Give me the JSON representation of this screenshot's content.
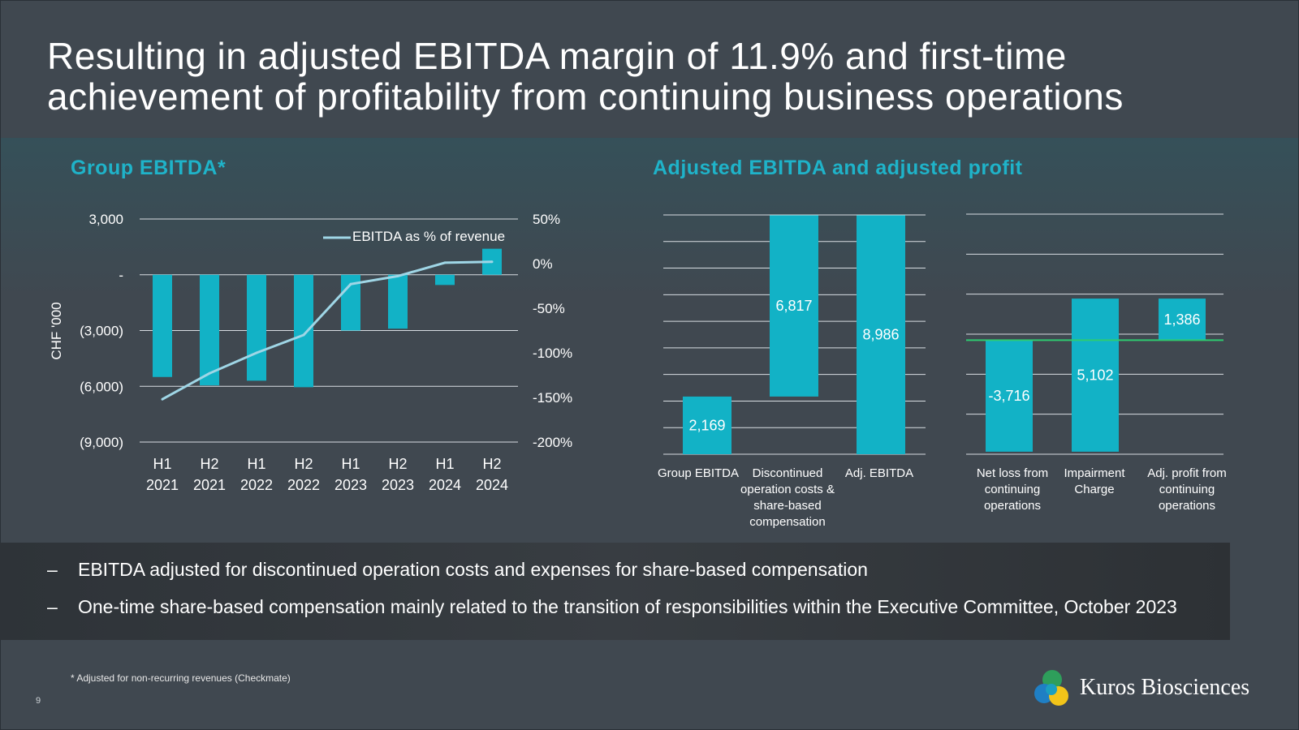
{
  "slide": {
    "title_line1": "Resulting in adjusted EBITDA margin of 11.9% and first-time",
    "title_line2": "achievement of profitability from continuing business operations",
    "page_number": "9",
    "footnote": "* Adjusted for non-recurring revenues (Checkmate)",
    "bullets": [
      "EBITDA adjusted for discontinued operation costs and expenses for share-based compensation",
      "One-time share-based compensation mainly related to the transition of responsibilities within the Executive Committee, October 2023"
    ],
    "bullet_marker": "–",
    "logo_text": "Kuros Biosciences",
    "colors": {
      "accent": "#1fb3c9",
      "bar": "#12b2c6",
      "line": "#9fd6e6",
      "zero_line": "#2ecc71",
      "background": "#404850"
    }
  },
  "chart_data": [
    {
      "type": "bar",
      "title": "Group EBITDA*",
      "categories": [
        [
          "H1",
          "2021"
        ],
        [
          "H2",
          "2021"
        ],
        [
          "H1",
          "2022"
        ],
        [
          "H2",
          "2022"
        ],
        [
          "H1",
          "2023"
        ],
        [
          "H2",
          "2023"
        ],
        [
          "H1",
          "2024"
        ],
        [
          "H2",
          "2024"
        ]
      ],
      "series": [
        {
          "name": "Group EBITDA",
          "type": "bar",
          "axis": "left",
          "values": [
            -5500,
            -5950,
            -5700,
            -6050,
            -3000,
            -2900,
            -550,
            1400
          ]
        },
        {
          "name": "EBITDA as % of revenue",
          "type": "line",
          "axis": "right",
          "values": [
            -152,
            -123,
            -100,
            -80,
            -23,
            -14,
            1,
            2
          ]
        }
      ],
      "ylabel": "CHF '000",
      "ylim": [
        -9000,
        3000
      ],
      "y_ticks": [
        3000,
        0,
        -3000,
        -6000,
        -9000
      ],
      "y_tick_labels": [
        "3,000",
        "-",
        "(3,000)",
        "(6,000)",
        "(9,000)"
      ],
      "y2lim": [
        -200,
        50
      ],
      "y2_ticks": [
        50,
        0,
        -50,
        -100,
        -150,
        -200
      ],
      "y2_tick_labels": [
        "50%",
        "0%",
        "-50%",
        "-100%",
        "-150%",
        "-200%"
      ],
      "legend": "EBITDA as % of revenue",
      "legend_position": "top-right",
      "grid": true
    },
    {
      "type": "bar",
      "title": "Adjusted EBITDA and adjusted profit",
      "subtype": "waterfall",
      "categories": [
        "Group EBITDA",
        "Discontinued operation costs & share-based compensation",
        "Adj. EBITDA"
      ],
      "category_label_lines": [
        [
          "Group EBITDA"
        ],
        [
          "Discontinued",
          "operation costs &",
          "share-based",
          "compensation"
        ],
        [
          "Adj. EBITDA"
        ]
      ],
      "values": [
        2169,
        6817,
        8986
      ],
      "bar_starts": [
        0,
        2169,
        0
      ],
      "data_labels": [
        "2,169",
        "6,817",
        "8,986"
      ],
      "ylim": [
        0,
        9000
      ],
      "grid": true
    },
    {
      "type": "bar",
      "subtype": "waterfall",
      "categories": [
        "Net loss from continuing operations",
        "Impairment Charge",
        "Adj. profit from continuing operations"
      ],
      "category_label_lines": [
        [
          "Net loss from",
          "continuing",
          "operations"
        ],
        [
          "Impairment",
          "Charge"
        ],
        [
          "Adj. profit from",
          "continuing",
          "operations"
        ]
      ],
      "values": [
        -3716,
        5102,
        1386
      ],
      "bar_starts": [
        0,
        -3716,
        0
      ],
      "data_labels": [
        "-3,716",
        "5,102",
        "1,386"
      ],
      "ylim": [
        -3800,
        4200
      ],
      "grid": true
    }
  ]
}
